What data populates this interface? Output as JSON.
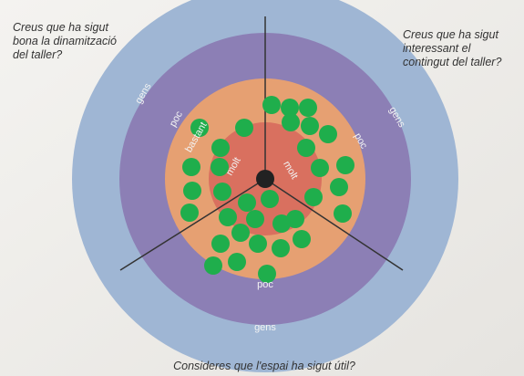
{
  "questions": [
    {
      "lines": [
        "Creus que ha sigut",
        "bona la dinamització",
        "del taller?"
      ]
    },
    {
      "lines": [
        "Creus que ha sigut",
        "interessant el",
        "contingut del taller?"
      ]
    },
    {
      "lines": [
        "Consideres que l'espai ha sigut útil?"
      ]
    }
  ],
  "sections": [
    {
      "labels": [
        "gens",
        "poc",
        "bastant",
        "molt"
      ]
    },
    {
      "labels": [
        "gens",
        "poc",
        "molt"
      ]
    },
    {
      "labels": [
        "gens",
        "poc"
      ]
    }
  ]
}
